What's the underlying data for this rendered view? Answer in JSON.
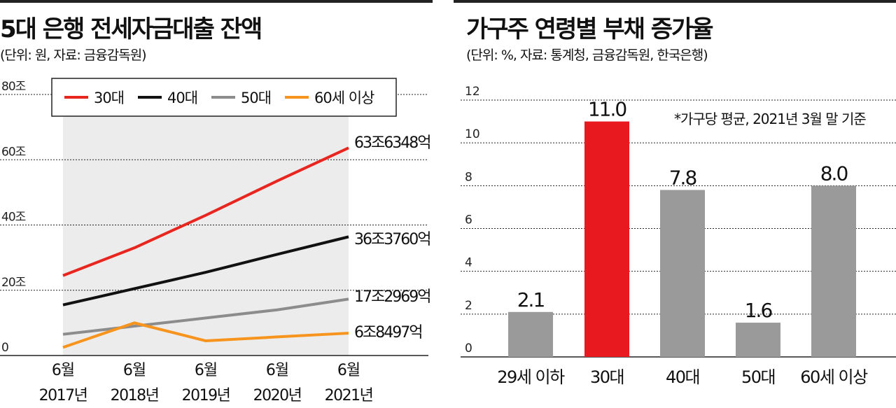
{
  "left_chart": {
    "title": "5대 은행 전세자금대출 잔액",
    "unit_note": "(단위: 원, 자료: 금융감독원)",
    "chart_data": {
      "type": "line",
      "categories": [
        [
          "6월",
          "2017년"
        ],
        [
          "6월",
          "2018년"
        ],
        [
          "6월",
          "2019년"
        ],
        [
          "6월",
          "2020년"
        ],
        [
          "6월",
          "2021년"
        ]
      ],
      "ylim": [
        0,
        80
      ],
      "yticks": [
        0,
        20,
        40,
        60,
        80
      ],
      "ytick_labels": [
        "0",
        "20조",
        "40조",
        "60조",
        "80조"
      ],
      "grid": true,
      "legend_position": "top",
      "series": [
        {
          "name": "30대",
          "color": "#e8261f",
          "values": [
            24.5,
            33,
            43,
            53.5,
            63.63
          ],
          "end_label": "63조6348억"
        },
        {
          "name": "40대",
          "color": "#111111",
          "values": [
            15.5,
            20.5,
            25.5,
            31,
            36.38
          ],
          "end_label": "36조3760억"
        },
        {
          "name": "50대",
          "color": "#8c8c8c",
          "values": [
            6.5,
            9,
            11.5,
            14,
            17.3
          ],
          "end_label": "17조2969억"
        },
        {
          "name": "60세 이상",
          "color": "#f7941d",
          "values": [
            2.5,
            10,
            4.5,
            5.7,
            6.85
          ],
          "end_label": "6조8497억"
        }
      ]
    }
  },
  "right_chart": {
    "title": "가구주 연령별 부채 증가율",
    "unit_note": "(단위: %, 자료: 통계청, 금융감독원, 한국은행)",
    "chart_data": {
      "type": "bar",
      "categories": [
        "29세 이하",
        "30대",
        "40대",
        "50대",
        "60세 이상"
      ],
      "values": [
        2.1,
        11.0,
        7.8,
        1.6,
        8.0
      ],
      "value_labels": [
        "2.1",
        "11.0",
        "7.8",
        "1.6",
        "8.0"
      ],
      "colors": [
        "#9a9a9a",
        "#e8191f",
        "#9a9a9a",
        "#9a9a9a",
        "#9a9a9a"
      ],
      "ylim": [
        0,
        12
      ],
      "yticks": [
        0,
        2,
        4,
        6,
        8,
        10,
        12
      ],
      "ytick_labels": [
        "0",
        "2",
        "4",
        "6",
        "8",
        "10",
        "12"
      ],
      "grid": true,
      "annotation": "*가구당 평균, 2021년 3월 말 기준"
    }
  }
}
